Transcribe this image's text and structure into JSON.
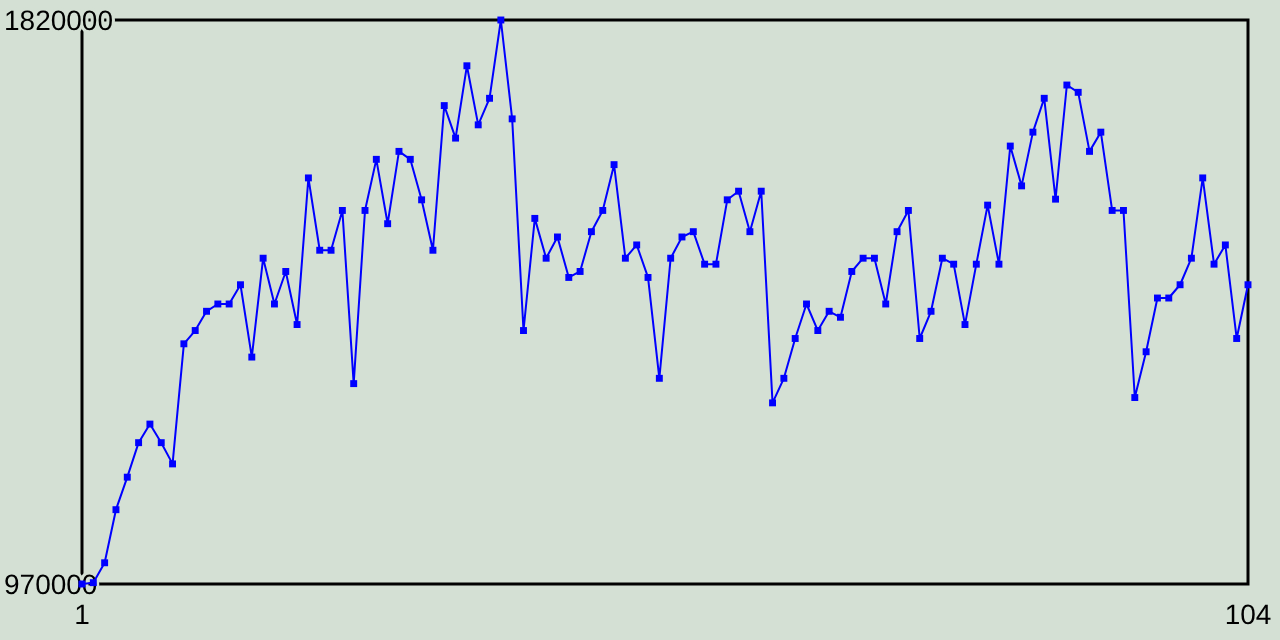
{
  "chart_data": {
    "type": "line",
    "x": [
      1,
      2,
      3,
      4,
      5,
      6,
      7,
      8,
      9,
      10,
      11,
      12,
      13,
      14,
      15,
      16,
      17,
      18,
      19,
      20,
      21,
      22,
      23,
      24,
      25,
      26,
      27,
      28,
      29,
      30,
      31,
      32,
      33,
      34,
      35,
      36,
      37,
      38,
      39,
      40,
      41,
      42,
      43,
      44,
      45,
      46,
      47,
      48,
      49,
      50,
      51,
      52,
      53,
      54,
      55,
      56,
      57,
      58,
      59,
      60,
      61,
      62,
      63,
      64,
      65,
      66,
      67,
      68,
      69,
      70,
      71,
      72,
      73,
      74,
      75,
      76,
      77,
      78,
      79,
      80,
      81,
      82,
      83,
      84,
      85,
      86,
      87,
      88,
      89,
      90,
      91,
      92,
      93,
      94,
      95,
      96,
      97,
      98,
      99,
      100,
      101,
      102,
      103,
      104
    ],
    "series": [
      {
        "color": "#0000ff",
        "values": [
          970000,
          972000,
          1002000,
          1082000,
          1131000,
          1183000,
          1211000,
          1183000,
          1151000,
          1332000,
          1352000,
          1381000,
          1392000,
          1392000,
          1421000,
          1312000,
          1461000,
          1392000,
          1441000,
          1361000,
          1582000,
          1473000,
          1473000,
          1533000,
          1272000,
          1533000,
          1610000,
          1513000,
          1622000,
          1610000,
          1549000,
          1473000,
          1691000,
          1642000,
          1751000,
          1662000,
          1702000,
          1820000,
          1671000,
          1352000,
          1521000,
          1461000,
          1493000,
          1432000,
          1441000,
          1501000,
          1533000,
          1602000,
          1461000,
          1481000,
          1432000,
          1280000,
          1461000,
          1493000,
          1501000,
          1452000,
          1452000,
          1549000,
          1562000,
          1501000,
          1562000,
          1243000,
          1280000,
          1340000,
          1392000,
          1352000,
          1381000,
          1372000,
          1441000,
          1461000,
          1461000,
          1392000,
          1501000,
          1533000,
          1340000,
          1381000,
          1461000,
          1452000,
          1361000,
          1452000,
          1541000,
          1452000,
          1630000,
          1570000,
          1651000,
          1702000,
          1550000,
          1722000,
          1711000,
          1622000,
          1651000,
          1533000,
          1533000,
          1251000,
          1320000,
          1401000,
          1401000,
          1421000,
          1461000,
          1582000,
          1452000,
          1481000,
          1340000,
          1421000
        ]
      }
    ],
    "xlim": [
      1,
      104
    ],
    "xticks": [
      1,
      104
    ],
    "ylim": [
      970000,
      1820000
    ],
    "yticks": [
      970000,
      1820000
    ],
    "marker": "square"
  }
}
